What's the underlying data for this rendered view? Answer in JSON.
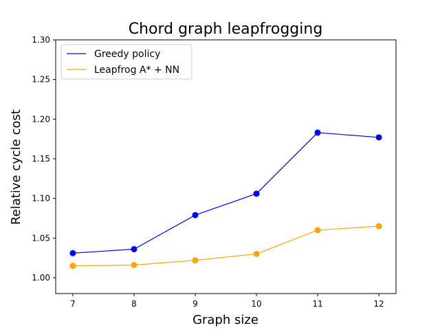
{
  "chart_data": {
    "type": "line",
    "title": "Chord graph leapfrogging",
    "xlabel": "Graph size",
    "ylabel": "Relative cycle cost",
    "x": [
      7,
      8,
      9,
      10,
      11,
      12
    ],
    "xlim": [
      6.72,
      12.28
    ],
    "ylim": [
      0.98,
      1.3
    ],
    "yticks": [
      "1.00",
      "1.05",
      "1.10",
      "1.15",
      "1.20",
      "1.25",
      "1.30"
    ],
    "xticks": [
      "7",
      "8",
      "9",
      "10",
      "11",
      "12"
    ],
    "grid": false,
    "legend_position": "top-left",
    "series": [
      {
        "name": "Greedy policy",
        "color": "#0000ff",
        "values": [
          1.031,
          1.036,
          1.079,
          1.106,
          1.183,
          1.177
        ]
      },
      {
        "name": "Leapfrog A* + NN",
        "color": "#ffa500",
        "values": [
          1.015,
          1.016,
          1.022,
          1.03,
          1.06,
          1.065
        ]
      }
    ]
  }
}
